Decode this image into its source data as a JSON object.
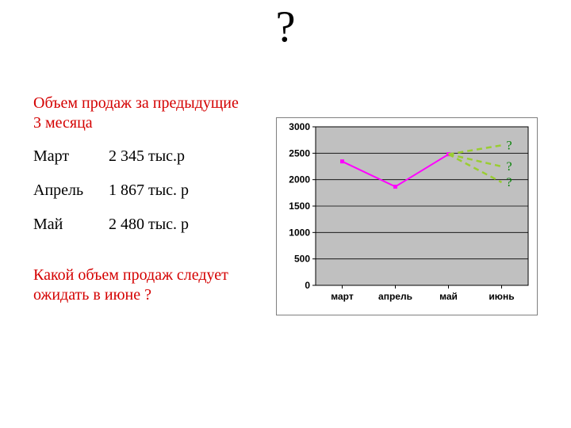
{
  "title_mark": "?",
  "left": {
    "heading": "Объем продаж за предыдущие 3 месяца",
    "rows": [
      {
        "month": "Март",
        "value": "2 345 тыс.р"
      },
      {
        "month": "Апрель",
        "value": " 1 867 тыс. р"
      },
      {
        "month": "Май",
        "value": " 2 480 тыс. р"
      }
    ],
    "question": "Какой объем продаж следует ожидать в июне ?",
    "heading_color": "#d40000",
    "question_color": "#d40000",
    "text_color": "#000000",
    "fontsize": 20
  },
  "chart": {
    "type": "line",
    "outer_border": "#808080",
    "plot_background": "#c0c0c0",
    "plot_border": "#000000",
    "gridline_color": "#000000",
    "y": {
      "min": 0,
      "max": 3000,
      "step": 500,
      "ticks": [
        "0",
        "500",
        "1000",
        "1500",
        "2000",
        "2500",
        "3000"
      ],
      "tick_fontsize": 12,
      "tick_fontweight": "bold"
    },
    "x": {
      "categories": [
        "март",
        "апрель",
        "май",
        "июнь"
      ],
      "tick_fontsize": 12,
      "tick_fontweight": "bold"
    },
    "series": {
      "values": [
        2345,
        1867,
        2480
      ],
      "line_color": "#ff00ff",
      "line_width": 2,
      "marker_color": "#ff00ff",
      "marker_size": 5,
      "marker_shape": "square"
    },
    "scenarios": {
      "line_color": "#9acd32",
      "line_width": 2.5,
      "dash": "7 5",
      "end_values": [
        2650,
        2250,
        1950
      ],
      "label": "?",
      "label_color": "#008000",
      "label_fontsize": 16
    }
  }
}
